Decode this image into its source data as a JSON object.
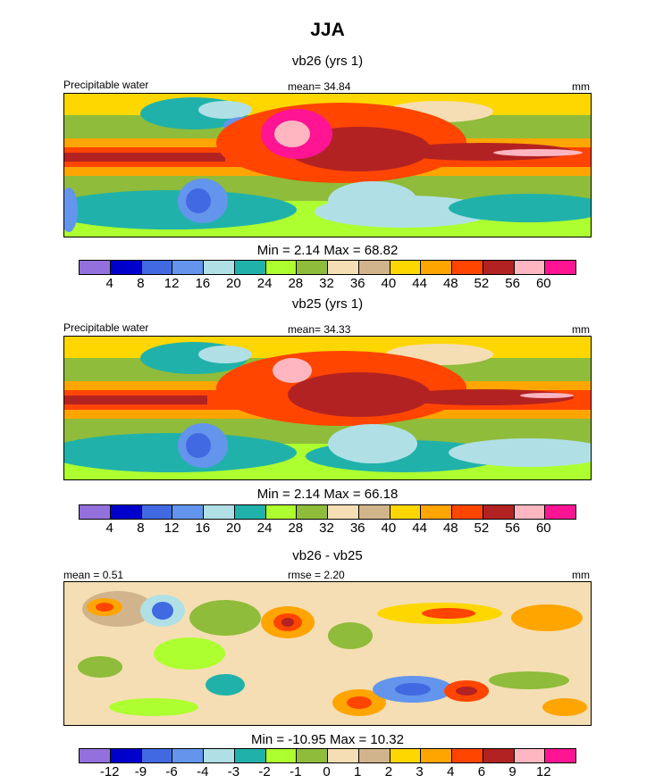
{
  "figure": {
    "title": "JJA",
    "units": "mm"
  },
  "panels": [
    {
      "subtitle": "vb26 (yrs 1)",
      "left_label": "Precipitable water",
      "center_label": "mean=  34.84",
      "right_label": "mm",
      "minmax": "Min =   2.14 Max =  68.82"
    },
    {
      "subtitle": "vb25 (yrs 1)",
      "left_label": "Precipitable water",
      "center_label": "mean=  34.33",
      "right_label": "mm",
      "minmax": "Min =   2.14 Max =  66.18"
    },
    {
      "subtitle": "vb26 - vb25",
      "left_label": "mean =   0.51",
      "center_label": "rmse =   2.20",
      "right_label": "mm",
      "minmax": "Min = -10.95 Max =  10.32"
    }
  ],
  "colorbars": {
    "absolute": {
      "colors": [
        "#9370db",
        "#0000cd",
        "#4169e1",
        "#6495ed",
        "#b0e0e6",
        "#20b2aa",
        "#adff2f",
        "#8fbc3a",
        "#f5deb3",
        "#d2b48c",
        "#ffd700",
        "#ffa500",
        "#ff4500",
        "#b22222",
        "#ffb6c1",
        "#ff1493"
      ],
      "labels": [
        "4",
        "8",
        "12",
        "16",
        "20",
        "24",
        "28",
        "32",
        "36",
        "40",
        "44",
        "48",
        "52",
        "56",
        "60"
      ]
    },
    "difference": {
      "colors": [
        "#9370db",
        "#0000cd",
        "#4169e1",
        "#6495ed",
        "#b0e0e6",
        "#20b2aa",
        "#adff2f",
        "#8fbc3a",
        "#f5deb3",
        "#d2b48c",
        "#ffd700",
        "#ffa500",
        "#ff4500",
        "#b22222",
        "#ffb6c1",
        "#ff1493"
      ],
      "labels": [
        "-12",
        "-9",
        "-6",
        "-4",
        "-3",
        "-2",
        "-1",
        "0",
        "1",
        "2",
        "3",
        "4",
        "6",
        "9",
        "12"
      ]
    }
  }
}
